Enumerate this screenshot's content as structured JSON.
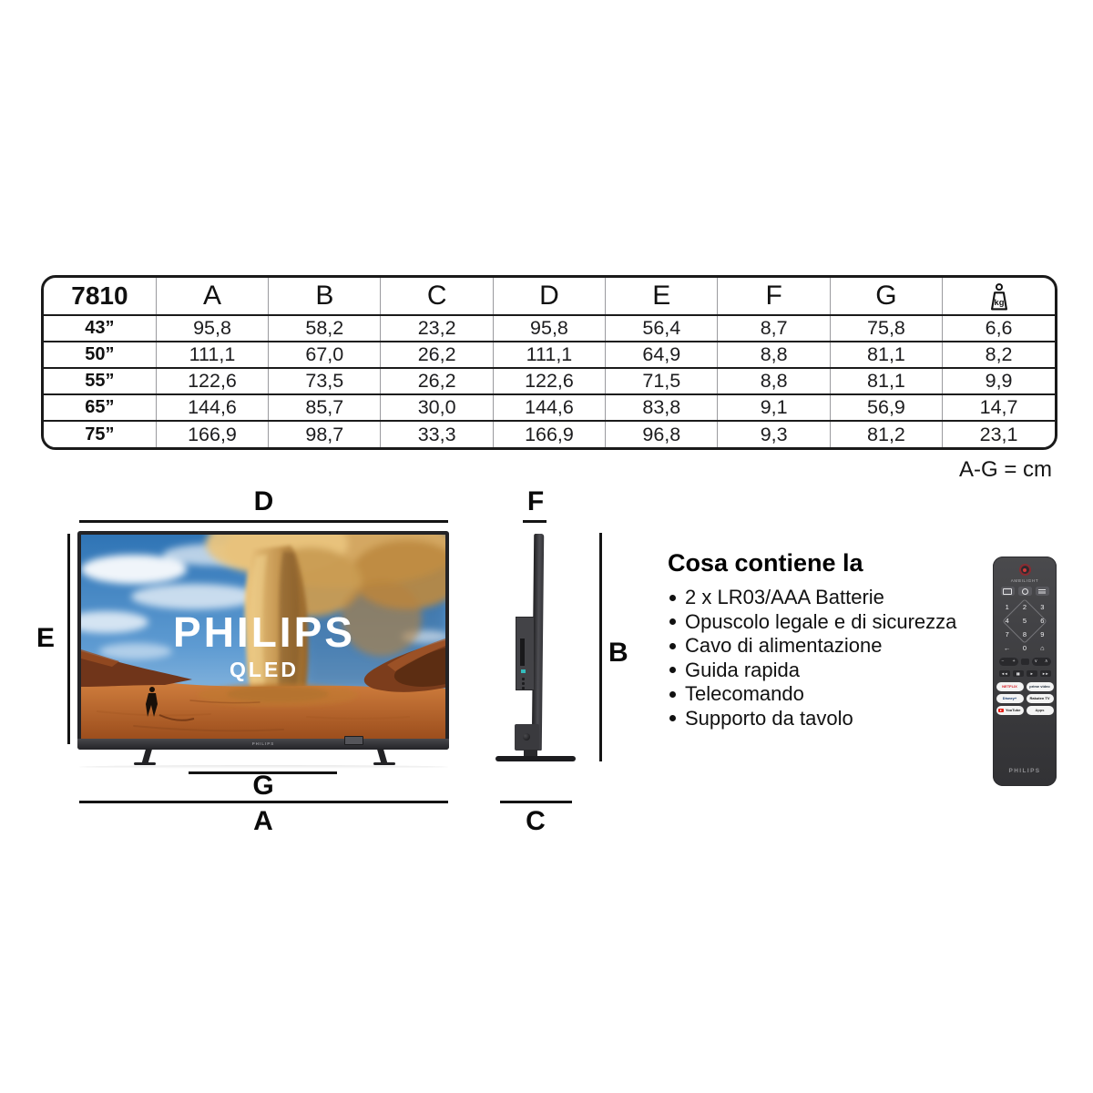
{
  "table": {
    "model": "7810",
    "columns": [
      "A",
      "B",
      "C",
      "D",
      "E",
      "F",
      "G"
    ],
    "weight_unit": "kg",
    "weight_icon": "kg-weight-icon",
    "rows": [
      {
        "size": "43”",
        "values": [
          "95,8",
          "58,2",
          "23,2",
          "95,8",
          "56,4",
          "8,7",
          "75,8",
          "6,6"
        ]
      },
      {
        "size": "50”",
        "values": [
          "111,1",
          "67,0",
          "26,2",
          "111,1",
          "64,9",
          "8,8",
          "81,1",
          "8,2"
        ]
      },
      {
        "size": "55”",
        "values": [
          "122,6",
          "73,5",
          "26,2",
          "122,6",
          "71,5",
          "8,8",
          "81,1",
          "9,9"
        ]
      },
      {
        "size": "65”",
        "values": [
          "144,6",
          "85,7",
          "30,0",
          "144,6",
          "83,8",
          "9,1",
          "56,9",
          "14,7"
        ]
      },
      {
        "size": "75”",
        "values": [
          "166,9",
          "98,7",
          "33,3",
          "166,9",
          "96,8",
          "9,3",
          "81,2",
          "23,1"
        ]
      }
    ],
    "unit_note": "A-G = cm"
  },
  "front_view": {
    "dim_top": "D",
    "dim_left": "E",
    "dim_feet": "G",
    "dim_bottom": "A",
    "screen_brand": "PHILIPS",
    "screen_panel": "QLED",
    "bezel_brand": "PHILIPS"
  },
  "side_view": {
    "dim_top": "F",
    "dim_right": "B",
    "dim_bottom": "C"
  },
  "box_contents": {
    "title": "Cosa contiene la",
    "items": [
      "2 x LR03/AAA Batterie",
      "Opuscolo legale e di sicurezza",
      "Cavo di alimentazione",
      "Guida rapida",
      "Telecomando",
      "Supporto da tavolo"
    ]
  },
  "remote": {
    "ambilight_label": "AMBILIGHT",
    "digits": [
      "1",
      "2",
      "3",
      "4",
      "5",
      "6",
      "7",
      "8",
      "9"
    ],
    "key_zero": "0",
    "nav_back": "←",
    "nav_home": "⌂",
    "media_keys": [
      {
        "name": "rewind",
        "glyph": "◄◄"
      },
      {
        "name": "pause",
        "glyph": "▮▮"
      },
      {
        "name": "play",
        "glyph": "►"
      },
      {
        "name": "forward",
        "glyph": "►►"
      }
    ],
    "apps": [
      {
        "name": "netflix",
        "label": "NETFLIX",
        "color": "#d6181f"
      },
      {
        "name": "prime-video",
        "label": "prime video",
        "color": "#232f3e"
      },
      {
        "name": "disney-plus",
        "label": "Disney+",
        "color": "#10356b"
      },
      {
        "name": "rakuten-tv",
        "label": "Rakuten TV",
        "color": "#111111"
      },
      {
        "name": "youtube",
        "label": "YouTube",
        "color": "#1a1a1a",
        "icon": "youtube-play"
      },
      {
        "name": "apps",
        "label": "Apps",
        "color": "#333333"
      }
    ],
    "brand_label": "PHILIPS",
    "colors": {
      "body": "#3f3f42",
      "power_red": "#d23a3a",
      "netflix_red": "#d6181f",
      "youtube_red": "#e62117"
    }
  }
}
